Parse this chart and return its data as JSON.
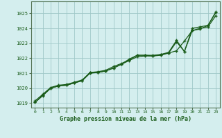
{
  "title": "Graphe pression niveau de la mer (hPa)",
  "background_color": "#d4eeee",
  "grid_color": "#a0c8c8",
  "line_color": "#1a5c1a",
  "xlim": [
    -0.5,
    23.5
  ],
  "ylim": [
    1018.7,
    1025.8
  ],
  "yticks": [
    1019,
    1020,
    1021,
    1022,
    1023,
    1024,
    1025
  ],
  "xticks": [
    0,
    1,
    2,
    3,
    4,
    5,
    6,
    7,
    8,
    9,
    10,
    11,
    12,
    13,
    14,
    15,
    16,
    17,
    18,
    19,
    20,
    21,
    22,
    23
  ],
  "series1_x": [
    0,
    1,
    2,
    3,
    4,
    5,
    6,
    7,
    8,
    9,
    10,
    11,
    12,
    13,
    14,
    15,
    16,
    17,
    18,
    19,
    20,
    21,
    22,
    23
  ],
  "series1_y": [
    1019.15,
    1019.6,
    1020.05,
    1020.2,
    1020.25,
    1020.4,
    1020.55,
    1021.05,
    1021.1,
    1021.2,
    1021.45,
    1021.65,
    1021.9,
    1022.2,
    1022.2,
    1022.2,
    1022.25,
    1022.4,
    1023.2,
    1022.45,
    1024.0,
    1024.1,
    1024.2,
    1025.05
  ],
  "series2_x": [
    0,
    1,
    2,
    3,
    4,
    5,
    6,
    7,
    8,
    9,
    10,
    11,
    12,
    13,
    14,
    15,
    16,
    17,
    18,
    19,
    20,
    21,
    22,
    23
  ],
  "series2_y": [
    1019.05,
    1019.55,
    1020.0,
    1020.15,
    1020.2,
    1020.35,
    1020.5,
    1021.0,
    1021.05,
    1021.15,
    1021.35,
    1021.6,
    1021.85,
    1022.1,
    1022.15,
    1022.15,
    1022.2,
    1022.35,
    1023.1,
    1022.45,
    1023.85,
    1024.0,
    1024.1,
    1024.85
  ],
  "series3_x": [
    0,
    1,
    2,
    3,
    4,
    5,
    6,
    7,
    8,
    9,
    10,
    11,
    12,
    13,
    14,
    15,
    16,
    17,
    18,
    19,
    20,
    21,
    22,
    23
  ],
  "series3_y": [
    1019.05,
    1019.5,
    1020.0,
    1020.15,
    1020.2,
    1020.35,
    1020.5,
    1021.05,
    1021.05,
    1021.15,
    1021.35,
    1021.6,
    1021.95,
    1022.2,
    1022.2,
    1022.15,
    1022.25,
    1022.35,
    1022.5,
    1023.15,
    1023.85,
    1023.95,
    1024.2,
    1025.1
  ]
}
